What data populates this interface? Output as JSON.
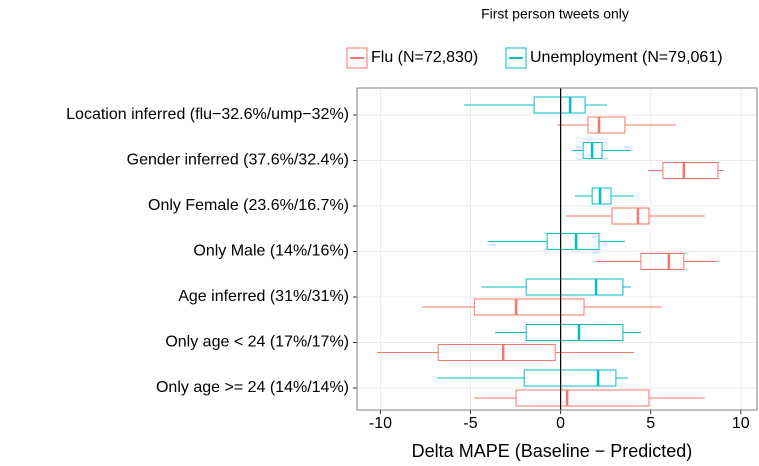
{
  "chart_data": {
    "type": "boxplot",
    "orientation": "horizontal",
    "title": "First person tweets only",
    "xlabel": "Delta MAPE (Baseline − Predicted)",
    "categories": [
      "Location inferred (flu−32.6%/ump−32%)",
      "Gender inferred (37.6%/32.4%)",
      "Only Female (23.6%/16.7%)",
      "Only Male (14%/16%)",
      "Age inferred (31%/31%)",
      "Only age < 24 (17%/17%)",
      "Only age >= 24 (14%/14%)"
    ],
    "series": [
      {
        "name": "Flu (N=72,830)",
        "color": "#F8766D",
        "values": [
          {
            "min": -0.19,
            "q1": 1.52,
            "median": 2.13,
            "q3": 3.57,
            "max": 6.4
          },
          {
            "min": 4.85,
            "q1": 5.68,
            "median": 6.84,
            "q3": 8.73,
            "max": 9.06
          },
          {
            "min": 0.3,
            "q1": 2.85,
            "median": 4.29,
            "q3": 4.9,
            "max": 8.0
          },
          {
            "min": 1.97,
            "q1": 4.46,
            "median": 6.01,
            "q3": 6.84,
            "max": 8.67
          },
          {
            "min": -7.67,
            "q1": -4.79,
            "median": -2.47,
            "q3": 1.3,
            "max": 5.62
          },
          {
            "min": -10.2,
            "q1": -6.79,
            "median": -3.19,
            "q3": -0.3,
            "max": 4.07
          },
          {
            "min": -4.79,
            "q1": -2.47,
            "median": 0.36,
            "q3": 4.9,
            "max": 8.0
          }
        ]
      },
      {
        "name": "Unemployment (N=79,061)",
        "color": "#00BFC4",
        "values": [
          {
            "min": -5.35,
            "q1": -1.47,
            "median": 0.53,
            "q3": 1.36,
            "max": 2.58
          },
          {
            "min": 0.64,
            "q1": 1.25,
            "median": 1.75,
            "q3": 2.3,
            "max": 3.9
          },
          {
            "min": 0.8,
            "q1": 1.75,
            "median": 2.19,
            "q3": 2.8,
            "max": 4.07
          },
          {
            "min": -4.0,
            "q1": -0.75,
            "median": 0.86,
            "q3": 2.13,
            "max": 3.57
          },
          {
            "min": -4.4,
            "q1": -1.91,
            "median": 1.97,
            "q3": 3.46,
            "max": 3.9
          },
          {
            "min": -3.63,
            "q1": -1.91,
            "median": 1.02,
            "q3": 3.46,
            "max": 4.46
          },
          {
            "min": -6.84,
            "q1": -2.02,
            "median": 2.08,
            "q3": 3.07,
            "max": 3.74
          }
        ]
      }
    ],
    "xlim": [
      -11.3,
      10.9
    ],
    "xticks": [
      -10,
      -5,
      0,
      5,
      10
    ],
    "reference_line": 0,
    "grid": true,
    "legend": "top"
  }
}
